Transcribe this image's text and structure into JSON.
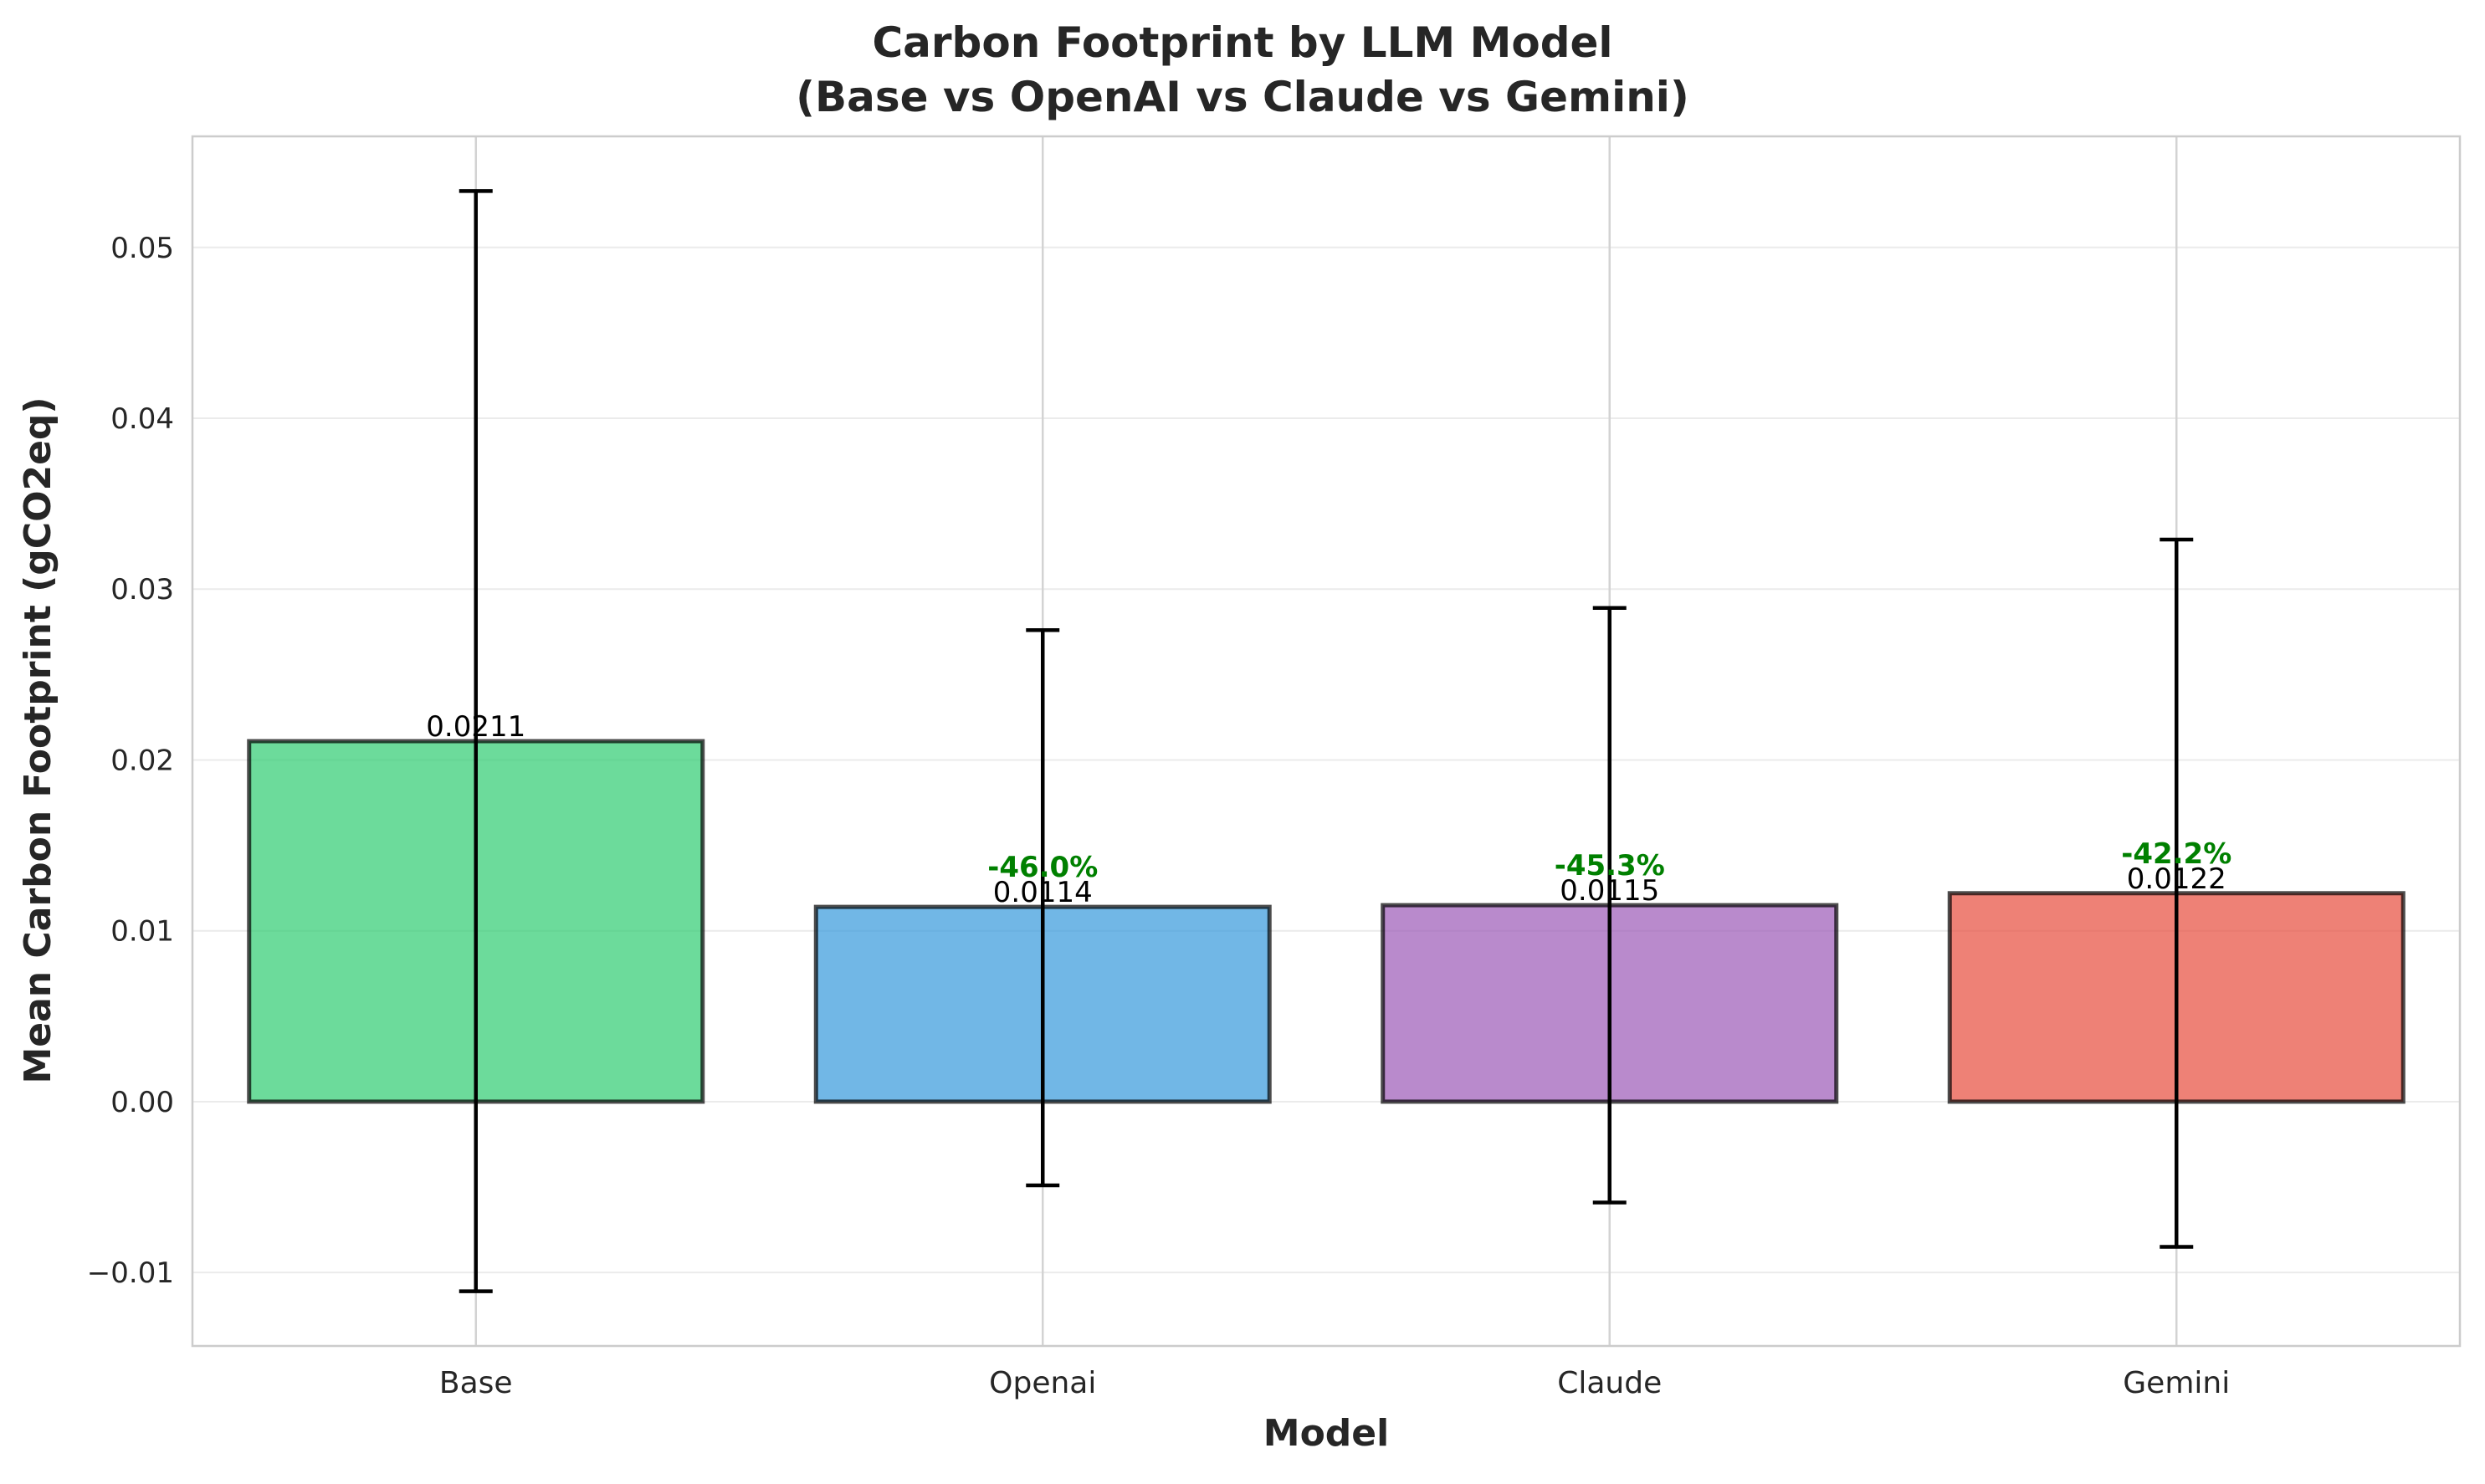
{
  "chart_data": {
    "type": "bar",
    "title_line1": "Carbon Footprint by LLM Model",
    "title_line2": "(Base vs OpenAI vs Claude vs Gemini)",
    "xlabel": "Model",
    "ylabel": "Mean Carbon Footprint (gCO2eq)",
    "categories": [
      "Base",
      "Openai",
      "Claude",
      "Gemini"
    ],
    "values": [
      0.0211,
      0.0114,
      0.0115,
      0.0122
    ],
    "value_labels": [
      "0.0211",
      "0.0114",
      "0.0115",
      "0.0122"
    ],
    "error_low": [
      -0.0111,
      -0.0049,
      -0.0059,
      -0.0085
    ],
    "error_high": [
      0.0533,
      0.0276,
      0.0289,
      0.0329
    ],
    "change_labels": [
      "",
      "-46.0%",
      "-45.3%",
      "-42.2%"
    ],
    "ylim": [
      -0.0143,
      0.0565
    ],
    "yticks": [
      -0.01,
      0.0,
      0.01,
      0.02,
      0.03,
      0.04,
      0.05
    ],
    "ytick_labels": [
      "−0.01",
      "0.00",
      "0.01",
      "0.02",
      "0.03",
      "0.04",
      "0.05"
    ],
    "grid": true,
    "bar_colors": [
      "#2ecc71",
      "#3498db",
      "#9b59b6",
      "#e74c3c"
    ],
    "change_color": "#008000"
  }
}
